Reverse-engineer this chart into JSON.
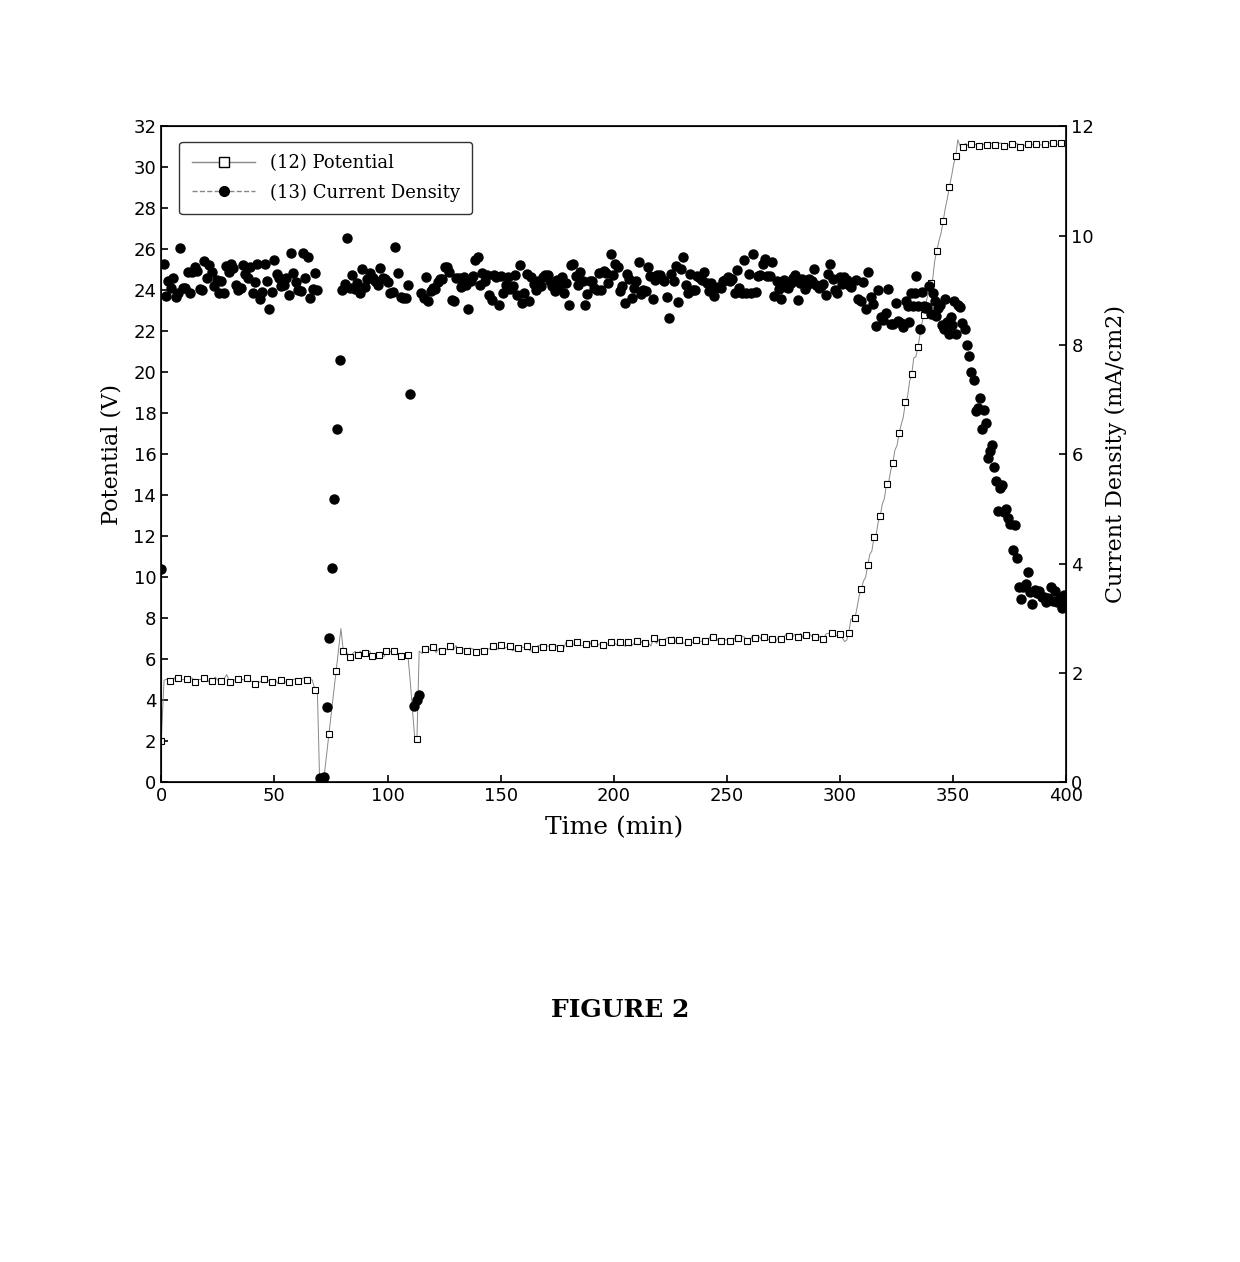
{
  "title": "FIGURE 2",
  "xlabel": "Time (min)",
  "ylabel_left": "Potential (V)",
  "ylabel_right": "Current Density (mA/cm2)",
  "xlim": [
    0,
    400
  ],
  "ylim_left": [
    0,
    32
  ],
  "ylim_right": [
    0,
    12
  ],
  "xticks": [
    0,
    50,
    100,
    150,
    200,
    250,
    300,
    350,
    400
  ],
  "yticks_left": [
    0,
    2,
    4,
    6,
    8,
    10,
    12,
    14,
    16,
    18,
    20,
    22,
    24,
    26,
    28,
    30,
    32
  ],
  "yticks_right": [
    0,
    2,
    4,
    6,
    8,
    10,
    12
  ],
  "legend_label_potential": "(12) Potential",
  "legend_label_current": "(13) Current Density",
  "figure_size": [
    12.4,
    12.62
  ],
  "dpi": 100,
  "line_color": "#888888",
  "marker_color": "#000000"
}
